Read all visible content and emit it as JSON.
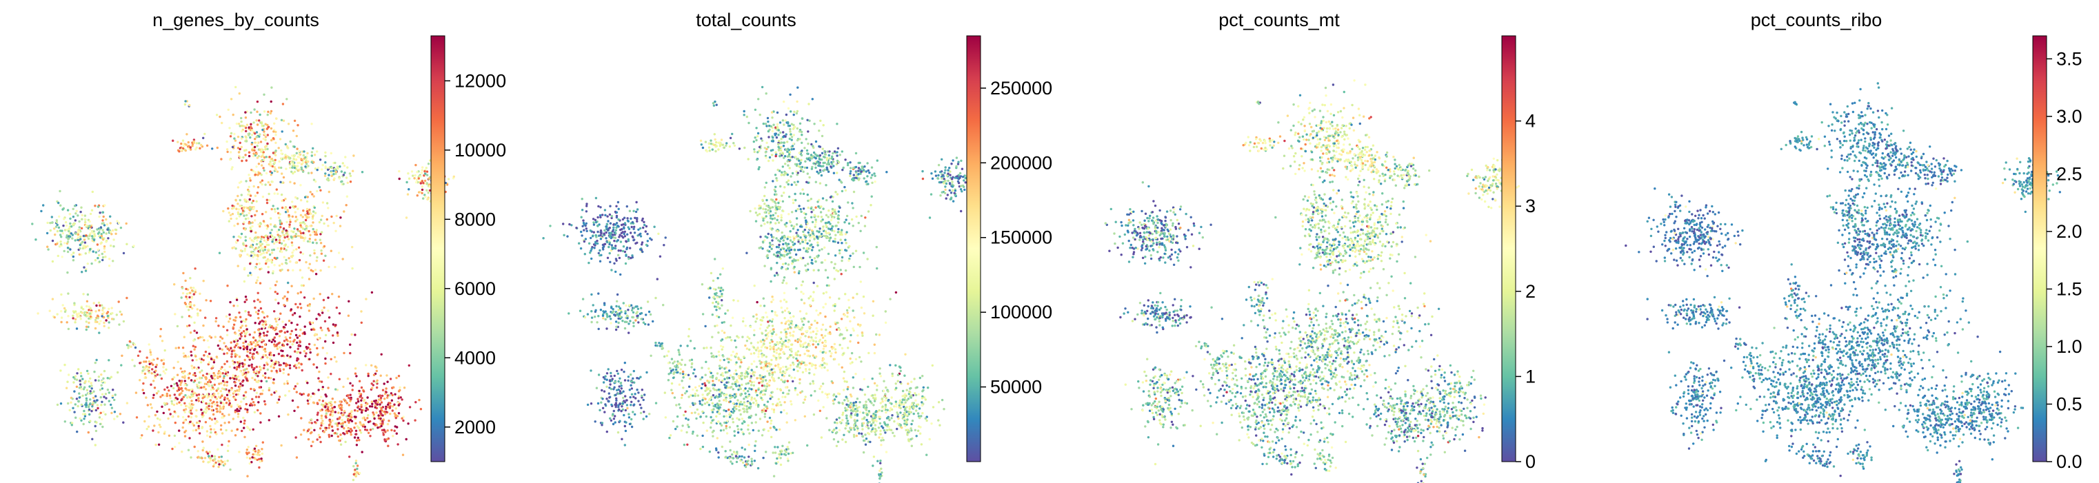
{
  "figure": {
    "background": "#ffffff",
    "colormap": "Spectral_r",
    "colormap_stops": [
      "#5e4fa2",
      "#3288bd",
      "#66c2a5",
      "#abdda4",
      "#e6f598",
      "#ffffbf",
      "#fee08b",
      "#fdae61",
      "#f46d43",
      "#d53e4f",
      "#9e0142"
    ]
  },
  "chart_data": [
    {
      "type": "scatter",
      "title": "n_genes_by_counts",
      "xlabel": "",
      "ylabel": "",
      "axes_frame": false,
      "colorbar": {
        "vmin": 1000,
        "vmax": 13300,
        "ticks": [
          2000,
          4000,
          6000,
          8000,
          10000,
          12000
        ],
        "tick_labels": [
          "2000",
          "4000",
          "6000",
          "8000",
          "10000",
          "12000"
        ]
      }
    },
    {
      "type": "scatter",
      "title": "total_counts",
      "xlabel": "",
      "ylabel": "",
      "axes_frame": false,
      "colorbar": {
        "vmin": 0,
        "vmax": 285000,
        "ticks": [
          50000,
          100000,
          150000,
          200000,
          250000
        ],
        "tick_labels": [
          "50000",
          "100000",
          "150000",
          "200000",
          "250000"
        ]
      }
    },
    {
      "type": "scatter",
      "title": "pct_counts_mt",
      "xlabel": "",
      "ylabel": "",
      "axes_frame": false,
      "colorbar": {
        "vmin": 0,
        "vmax": 5.0,
        "ticks": [
          0,
          1,
          2,
          3,
          4
        ],
        "tick_labels": [
          "0",
          "1",
          "2",
          "3",
          "4"
        ]
      }
    },
    {
      "type": "scatter",
      "title": "pct_counts_ribo",
      "xlabel": "",
      "ylabel": "",
      "axes_frame": false,
      "colorbar": {
        "vmin": 0,
        "vmax": 3.7,
        "ticks": [
          0,
          0.5,
          1,
          1.5,
          2,
          2.5,
          3,
          3.5
        ],
        "tick_labels": [
          "0.0",
          "0.5",
          "1.0",
          "1.5",
          "2.0",
          "2.5",
          "3.0",
          "3.5"
        ]
      }
    }
  ]
}
